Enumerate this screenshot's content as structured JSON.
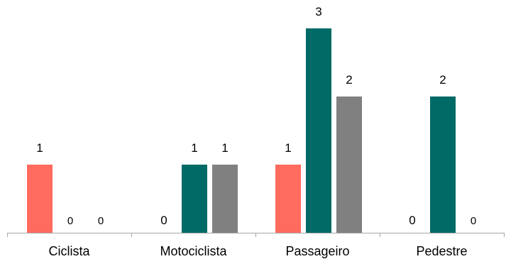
{
  "chart_data": {
    "type": "bar",
    "categories": [
      "Ciclista",
      "Motociclista",
      "Passageiro",
      "Pedestre"
    ],
    "series": [
      {
        "values": [
          1,
          0,
          1,
          0
        ],
        "color": "#FF6B5E"
      },
      {
        "values": [
          0,
          1,
          3,
          2
        ],
        "color": "#006A67"
      },
      {
        "values": [
          0,
          1,
          2,
          0
        ],
        "color": "#808080"
      }
    ],
    "ylim": [
      0,
      3
    ],
    "grid": false,
    "legend": "none",
    "axis_color": "#A6A6A6"
  }
}
